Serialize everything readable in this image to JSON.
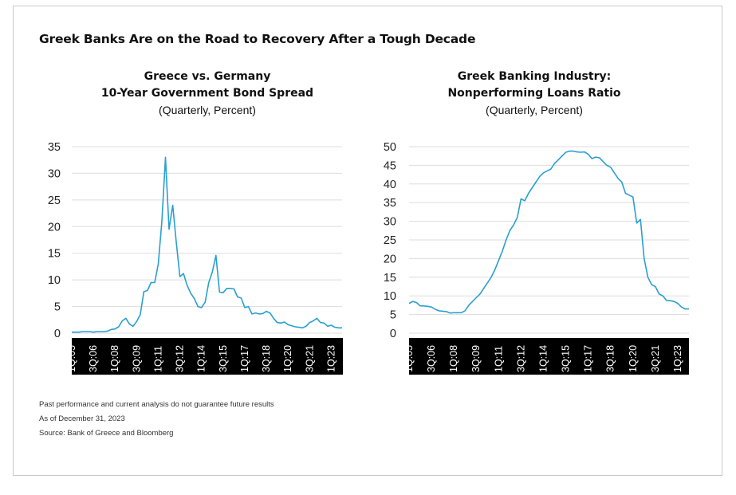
{
  "title": "Greek Banks Are on the Road to Recovery After a Tough Decade",
  "charts": [
    {
      "title_line1": "Greece vs. Germany",
      "title_line2": "10-Year Government Bond Spread",
      "subtitle": "(Quarterly, Percent)"
    },
    {
      "title_line1": "Greek Banking Industry:",
      "title_line2": "Nonperforming Loans Ratio",
      "subtitle": "(Quarterly, Percent)"
    }
  ],
  "footnotes": {
    "disclaimer": "Past performance and current analysis do not guarantee future results",
    "as_of": "As of December 31, 2023",
    "source": "Bank of Greece and Bloomberg"
  },
  "colors": {
    "line": "#2a9fd0",
    "grid": "#dddddd",
    "axis_band": "#000000"
  },
  "chart_data": [
    {
      "type": "line",
      "title": "Greece vs. Germany 10-Year Government Bond Spread",
      "ylim": [
        0,
        35
      ],
      "yticks": [
        0,
        5,
        10,
        15,
        20,
        25,
        30,
        35
      ],
      "xlim": [
        2005.0,
        2023.75
      ],
      "tick_labels": [
        {
          "label": "1Q:05",
          "t": 2005.0
        },
        {
          "label": "3Q:06",
          "t": 2006.5
        },
        {
          "label": "1Q:08",
          "t": 2008.0
        },
        {
          "label": "3Q:09",
          "t": 2009.5
        },
        {
          "label": "1Q:11",
          "t": 2011.0
        },
        {
          "label": "3Q:12",
          "t": 2012.5
        },
        {
          "label": "1Q:14",
          "t": 2014.0
        },
        {
          "label": "3Q:15",
          "t": 2015.5
        },
        {
          "label": "1Q:17",
          "t": 2017.0
        },
        {
          "label": "3Q:18",
          "t": 2018.5
        },
        {
          "label": "1Q:20",
          "t": 2020.0
        },
        {
          "label": "3Q:21",
          "t": 2021.5
        },
        {
          "label": "1Q:23",
          "t": 2023.0
        }
      ],
      "grid": true,
      "series": [
        {
          "points": [
            [
              2005.0,
              0.2
            ],
            [
              2005.25,
              0.2
            ],
            [
              2005.5,
              0.2
            ],
            [
              2005.75,
              0.3
            ],
            [
              2006.0,
              0.3
            ],
            [
              2006.25,
              0.3
            ],
            [
              2006.5,
              0.2
            ],
            [
              2006.75,
              0.3
            ],
            [
              2007.0,
              0.3
            ],
            [
              2007.25,
              0.3
            ],
            [
              2007.5,
              0.4
            ],
            [
              2007.75,
              0.7
            ],
            [
              2008.0,
              0.8
            ],
            [
              2008.25,
              1.2
            ],
            [
              2008.5,
              2.3
            ],
            [
              2008.75,
              2.8
            ],
            [
              2009.0,
              1.7
            ],
            [
              2009.25,
              1.3
            ],
            [
              2009.5,
              2.2
            ],
            [
              2009.75,
              3.5
            ],
            [
              2010.0,
              7.8
            ],
            [
              2010.25,
              8.0
            ],
            [
              2010.5,
              9.5
            ],
            [
              2010.75,
              9.5
            ],
            [
              2011.0,
              13.0
            ],
            [
              2011.25,
              21.0
            ],
            [
              2011.5,
              33.0
            ],
            [
              2011.75,
              19.5
            ],
            [
              2012.0,
              24.0
            ],
            [
              2012.25,
              17.0
            ],
            [
              2012.5,
              10.6
            ],
            [
              2012.75,
              11.2
            ],
            [
              2013.0,
              9.0
            ],
            [
              2013.25,
              7.5
            ],
            [
              2013.5,
              6.5
            ],
            [
              2013.75,
              5.0
            ],
            [
              2014.0,
              4.8
            ],
            [
              2014.25,
              5.8
            ],
            [
              2014.5,
              9.5
            ],
            [
              2014.75,
              11.5
            ],
            [
              2015.0,
              14.6
            ],
            [
              2015.25,
              7.7
            ],
            [
              2015.5,
              7.6
            ],
            [
              2015.75,
              8.4
            ],
            [
              2016.0,
              8.4
            ],
            [
              2016.25,
              8.3
            ],
            [
              2016.5,
              6.8
            ],
            [
              2016.75,
              6.6
            ],
            [
              2017.0,
              4.8
            ],
            [
              2017.25,
              5.0
            ],
            [
              2017.5,
              3.6
            ],
            [
              2017.75,
              3.8
            ],
            [
              2018.0,
              3.6
            ],
            [
              2018.25,
              3.7
            ],
            [
              2018.5,
              4.1
            ],
            [
              2018.75,
              3.8
            ],
            [
              2019.0,
              2.8
            ],
            [
              2019.25,
              2.0
            ],
            [
              2019.5,
              1.9
            ],
            [
              2019.75,
              2.1
            ],
            [
              2020.0,
              1.6
            ],
            [
              2020.25,
              1.4
            ],
            [
              2020.5,
              1.2
            ],
            [
              2020.75,
              1.1
            ],
            [
              2021.0,
              1.0
            ],
            [
              2021.25,
              1.3
            ],
            [
              2021.5,
              2.0
            ],
            [
              2021.75,
              2.3
            ],
            [
              2022.0,
              2.8
            ],
            [
              2022.25,
              2.0
            ],
            [
              2022.5,
              1.9
            ],
            [
              2022.75,
              1.3
            ],
            [
              2023.0,
              1.5
            ],
            [
              2023.25,
              1.1
            ],
            [
              2023.5,
              1.0
            ],
            [
              2023.75,
              1.0
            ]
          ]
        }
      ]
    },
    {
      "type": "line",
      "title": "Greek Banking Industry: Nonperforming Loans Ratio",
      "ylim": [
        0,
        50
      ],
      "yticks": [
        0,
        5,
        10,
        15,
        20,
        25,
        30,
        35,
        40,
        45,
        50
      ],
      "xlim": [
        2005.0,
        2023.75
      ],
      "tick_labels": [
        {
          "label": "1Q:05",
          "t": 2005.0
        },
        {
          "label": "3Q:06",
          "t": 2006.5
        },
        {
          "label": "1Q:08",
          "t": 2008.0
        },
        {
          "label": "3Q:09",
          "t": 2009.5
        },
        {
          "label": "1Q:11",
          "t": 2011.0
        },
        {
          "label": "3Q:12",
          "t": 2012.5
        },
        {
          "label": "1Q:14",
          "t": 2014.0
        },
        {
          "label": "3Q:15",
          "t": 2015.5
        },
        {
          "label": "1Q:17",
          "t": 2017.0
        },
        {
          "label": "3Q:18",
          "t": 2018.5
        },
        {
          "label": "1Q:20",
          "t": 2020.0
        },
        {
          "label": "3Q:21",
          "t": 2021.5
        },
        {
          "label": "1Q:23",
          "t": 2023.0
        }
      ],
      "grid": true,
      "series": [
        {
          "points": [
            [
              2005.0,
              8.0
            ],
            [
              2005.25,
              8.5
            ],
            [
              2005.5,
              8.2
            ],
            [
              2005.75,
              7.3
            ],
            [
              2006.0,
              7.3
            ],
            [
              2006.25,
              7.2
            ],
            [
              2006.5,
              7.0
            ],
            [
              2006.75,
              6.4
            ],
            [
              2007.0,
              6.0
            ],
            [
              2007.25,
              5.9
            ],
            [
              2007.5,
              5.8
            ],
            [
              2007.75,
              5.4
            ],
            [
              2008.0,
              5.5
            ],
            [
              2008.25,
              5.5
            ],
            [
              2008.5,
              5.5
            ],
            [
              2008.75,
              6.0
            ],
            [
              2009.0,
              7.5
            ],
            [
              2009.25,
              8.5
            ],
            [
              2009.5,
              9.5
            ],
            [
              2009.75,
              10.5
            ],
            [
              2010.0,
              12.0
            ],
            [
              2010.25,
              13.5
            ],
            [
              2010.5,
              15.0
            ],
            [
              2010.75,
              17.0
            ],
            [
              2011.0,
              19.5
            ],
            [
              2011.25,
              22.0
            ],
            [
              2011.5,
              25.0
            ],
            [
              2011.75,
              27.5
            ],
            [
              2012.0,
              29.0
            ],
            [
              2012.25,
              31.0
            ],
            [
              2012.5,
              36.0
            ],
            [
              2012.75,
              35.5
            ],
            [
              2013.0,
              37.5
            ],
            [
              2013.25,
              39.0
            ],
            [
              2013.5,
              40.5
            ],
            [
              2013.75,
              42.0
            ],
            [
              2014.0,
              43.0
            ],
            [
              2014.25,
              43.5
            ],
            [
              2014.5,
              44.0
            ],
            [
              2014.75,
              45.5
            ],
            [
              2015.0,
              46.5
            ],
            [
              2015.25,
              47.5
            ],
            [
              2015.5,
              48.5
            ],
            [
              2015.75,
              48.8
            ],
            [
              2016.0,
              48.8
            ],
            [
              2016.25,
              48.6
            ],
            [
              2016.5,
              48.5
            ],
            [
              2016.75,
              48.6
            ],
            [
              2017.0,
              48.0
            ],
            [
              2017.25,
              46.8
            ],
            [
              2017.5,
              47.2
            ],
            [
              2017.75,
              47.0
            ],
            [
              2018.0,
              46.0
            ],
            [
              2018.25,
              45.0
            ],
            [
              2018.5,
              44.5
            ],
            [
              2018.75,
              43.0
            ],
            [
              2019.0,
              41.5
            ],
            [
              2019.25,
              40.5
            ],
            [
              2019.5,
              37.5
            ],
            [
              2019.75,
              37.0
            ],
            [
              2020.0,
              36.5
            ],
            [
              2020.25,
              29.5
            ],
            [
              2020.5,
              30.5
            ],
            [
              2020.75,
              20.0
            ],
            [
              2021.0,
              15.0
            ],
            [
              2021.25,
              13.0
            ],
            [
              2021.5,
              12.5
            ],
            [
              2021.75,
              10.5
            ],
            [
              2022.0,
              10.0
            ],
            [
              2022.25,
              8.8
            ],
            [
              2022.5,
              8.7
            ],
            [
              2022.75,
              8.5
            ],
            [
              2023.0,
              8.0
            ],
            [
              2023.25,
              7.0
            ],
            [
              2023.5,
              6.5
            ],
            [
              2023.75,
              6.5
            ]
          ]
        }
      ]
    }
  ]
}
